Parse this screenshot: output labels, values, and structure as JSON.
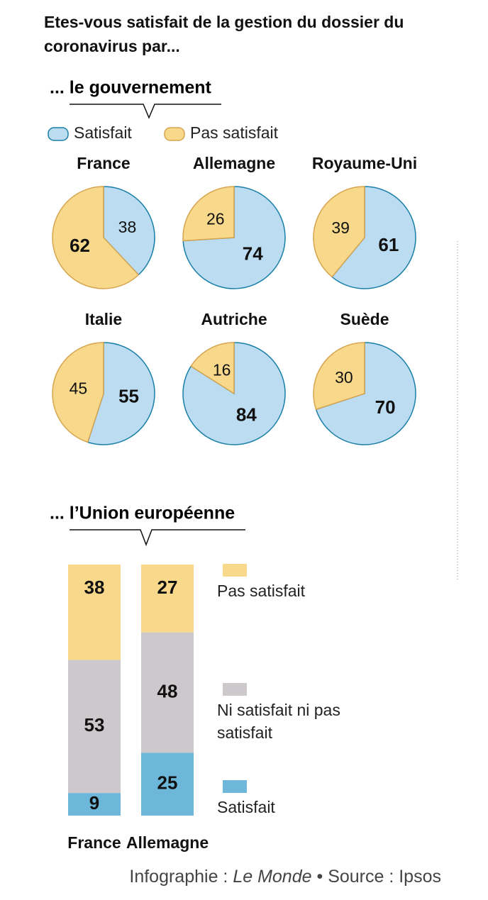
{
  "title": "Etes-vous satisfait de la gestion du dossier du coronavirus par...",
  "credit": "Infographie :",
  "outlet": "Le Monde",
  "source": "Source : Ipsos",
  "chart_data": [
    {
      "type": "pie",
      "subtitle": "... le gouvernement",
      "categories": [
        "France",
        "Allemagne",
        "Royaume-Uni",
        "Italie",
        "Autriche",
        "Suède"
      ],
      "series": [
        {
          "name": "Satisfait",
          "color": "#bcdcf1",
          "stroke": "#1a7fa6",
          "values": [
            38,
            74,
            61,
            55,
            84,
            70
          ]
        },
        {
          "name": "Pas satisfait",
          "color": "#f8d98b",
          "stroke": "#d6a44e",
          "values": [
            62,
            26,
            39,
            45,
            16,
            30
          ]
        }
      ]
    },
    {
      "type": "stacked-bar",
      "subtitle": "... l’Union européenne",
      "categories": [
        "France",
        "Allemagne"
      ],
      "series": [
        {
          "name": "Satisfait",
          "color": "#6cb7da",
          "values": [
            9,
            25
          ]
        },
        {
          "name": "Ni satisfait ni pas satisfait",
          "color": "#cdc8cc",
          "values": [
            53,
            48
          ]
        },
        {
          "name": "Pas satisfait",
          "color": "#f8d98b",
          "values": [
            38,
            27
          ]
        }
      ]
    }
  ]
}
